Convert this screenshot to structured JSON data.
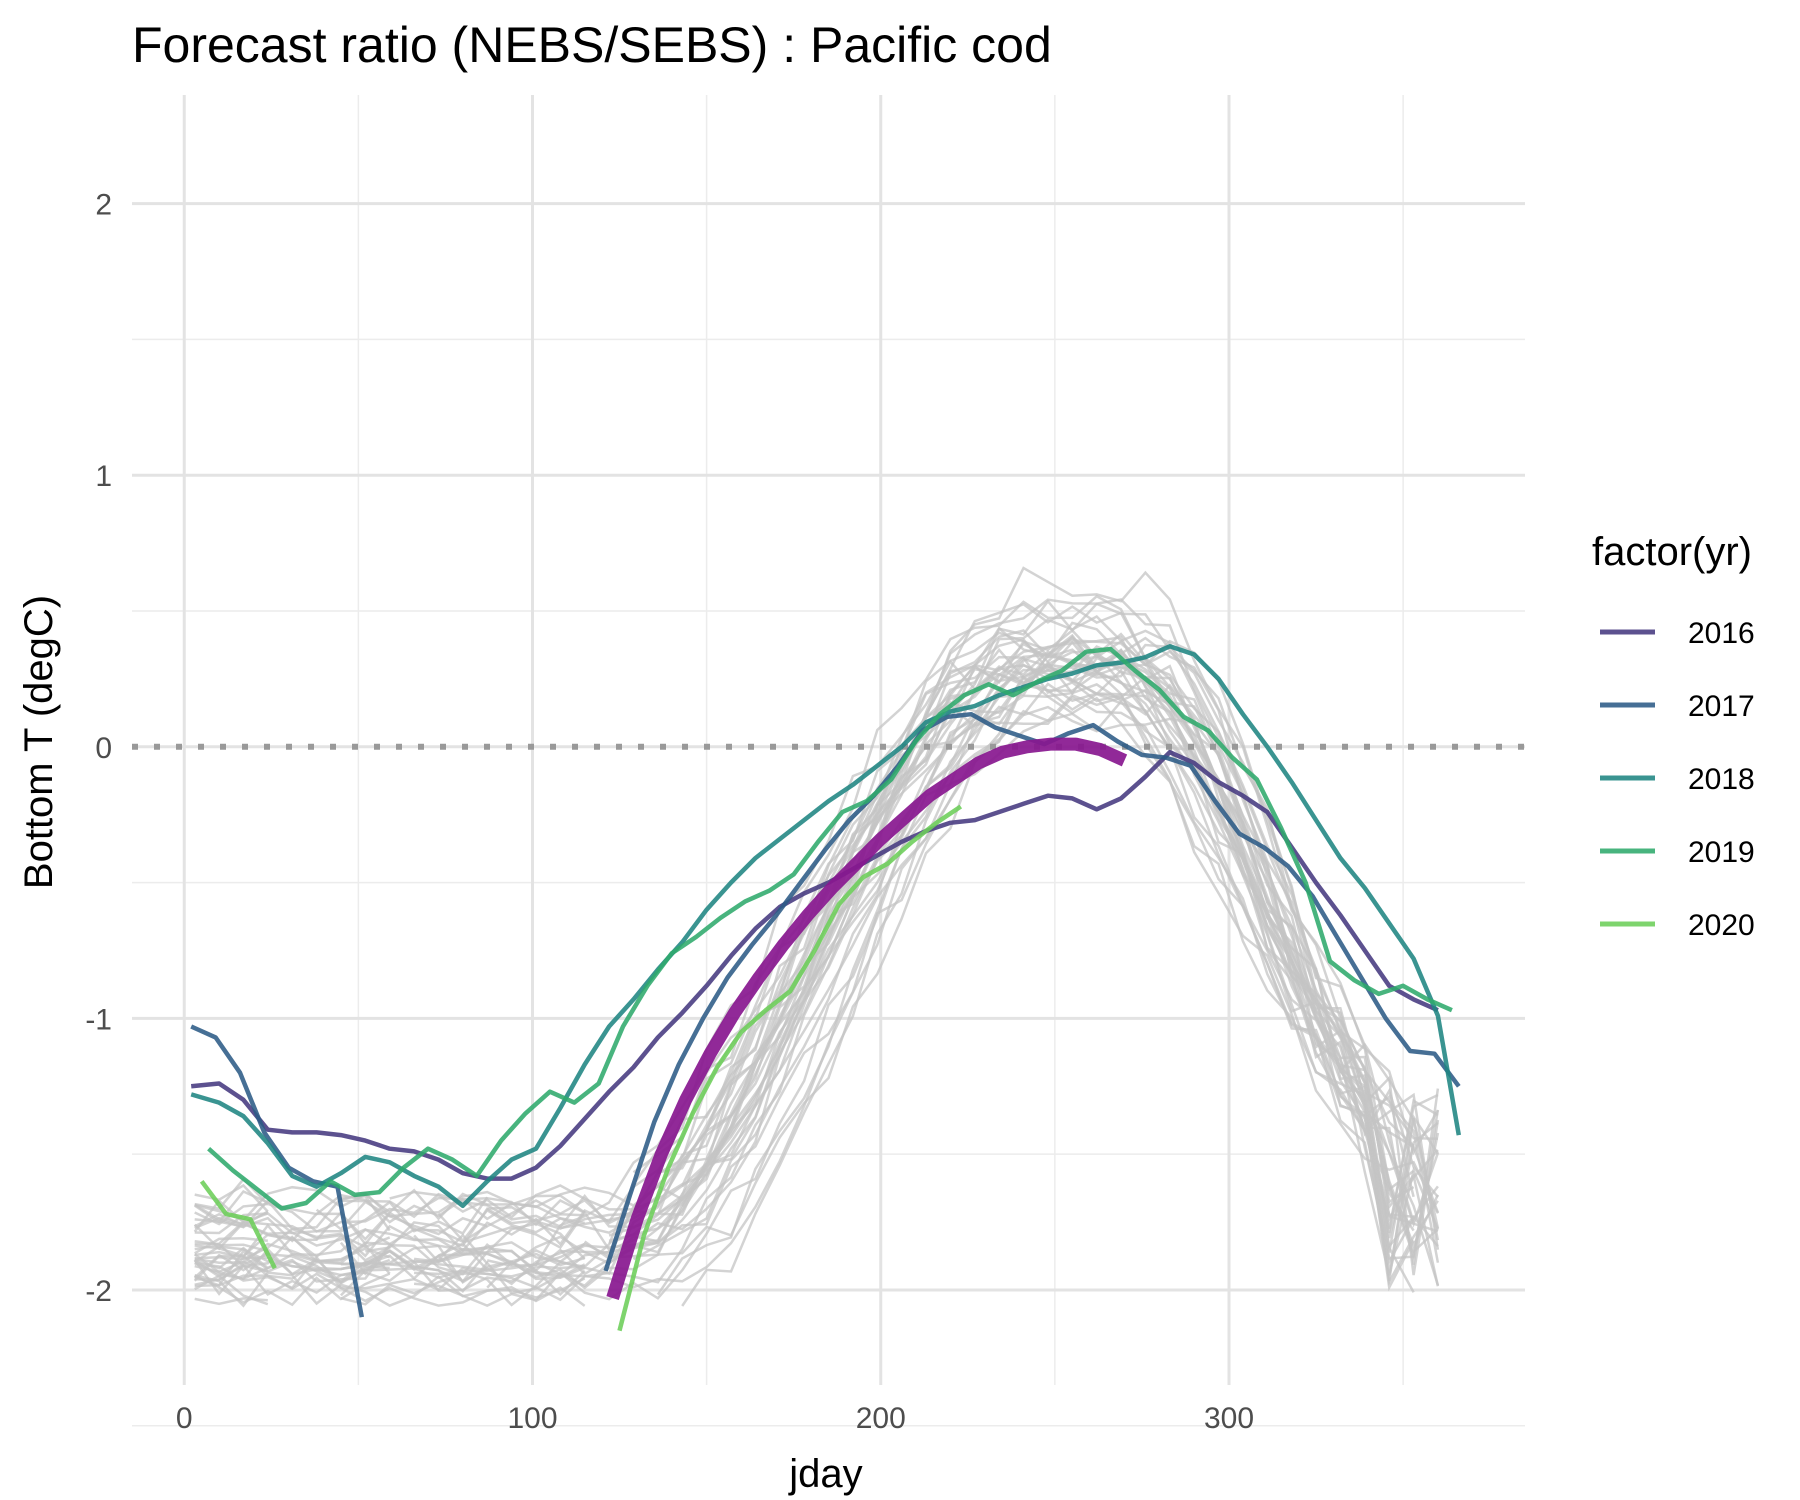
{
  "chart_data": {
    "type": "line",
    "title": "Forecast ratio (NEBS/SEBS) : Pacific cod",
    "xlabel": "jday",
    "ylabel": "Bottom T (degC)",
    "xlim": [
      -15,
      385
    ],
    "ylim": [
      -2.35,
      2.4
    ],
    "x_ticks": [
      0,
      100,
      200,
      300
    ],
    "x_tick_labels": [
      "0",
      "100",
      "200",
      "300"
    ],
    "y_ticks": [
      -2,
      -1,
      0,
      1,
      2
    ],
    "y_tick_labels": [
      "-2",
      "-1",
      "0",
      "1",
      "2"
    ],
    "grid": true,
    "reference_line": {
      "y": 0,
      "style": "dotted",
      "color": "#999999"
    },
    "legend": {
      "title": "factor(yr)",
      "position": "right",
      "entries": [
        {
          "label": "2016",
          "color": "#46397f"
        },
        {
          "label": "2017",
          "color": "#2c5b86"
        },
        {
          "label": "2018",
          "color": "#1f8582"
        },
        {
          "label": "2019",
          "color": "#2faa6c"
        },
        {
          "label": "2020",
          "color": "#6cce59"
        }
      ]
    },
    "colors": {
      "background_years": "#c4c4c4",
      "forecast": "#88178f"
    },
    "series": [
      {
        "name": "2016",
        "color": "#46397f",
        "x": [
          2,
          10,
          17,
          24,
          31,
          38,
          45,
          52,
          59,
          66,
          73,
          80,
          87,
          94,
          101,
          108,
          115,
          122,
          129,
          136,
          143,
          150,
          157,
          164,
          171,
          178,
          185,
          192,
          199,
          206,
          213,
          220,
          227,
          234,
          241,
          248,
          255,
          262,
          269,
          276,
          283,
          290,
          297,
          304,
          311,
          318,
          325,
          332,
          339,
          346,
          353,
          360
        ],
        "y": [
          -1.25,
          -1.24,
          -1.3,
          -1.41,
          -1.42,
          -1.42,
          -1.43,
          -1.45,
          -1.48,
          -1.49,
          -1.52,
          -1.57,
          -1.59,
          -1.59,
          -1.55,
          -1.47,
          -1.37,
          -1.27,
          -1.18,
          -1.07,
          -0.98,
          -0.88,
          -0.77,
          -0.67,
          -0.59,
          -0.54,
          -0.5,
          -0.45,
          -0.4,
          -0.35,
          -0.31,
          -0.28,
          -0.27,
          -0.24,
          -0.21,
          -0.18,
          -0.19,
          -0.23,
          -0.19,
          -0.11,
          -0.02,
          -0.06,
          -0.13,
          -0.18,
          -0.24,
          -0.37,
          -0.5,
          -0.62,
          -0.75,
          -0.88,
          -0.93,
          -0.97
        ]
      },
      {
        "name": "2017",
        "color": "#2c5b86",
        "x": [
          2,
          9,
          16,
          23,
          30,
          37,
          44,
          51,
          121,
          128,
          135,
          142,
          149,
          156,
          163,
          170,
          177,
          184,
          191,
          198,
          205,
          212,
          219,
          226,
          233,
          240,
          247,
          254,
          261,
          268,
          275,
          282,
          289,
          296,
          303,
          310,
          317,
          324,
          331,
          338,
          345,
          352,
          359,
          366
        ],
        "y": [
          -1.03,
          -1.07,
          -1.2,
          -1.42,
          -1.55,
          -1.6,
          -1.62,
          -2.1,
          -1.93,
          -1.65,
          -1.38,
          -1.17,
          -1.0,
          -0.85,
          -0.73,
          -0.62,
          -0.5,
          -0.38,
          -0.27,
          -0.18,
          -0.07,
          0.06,
          0.11,
          0.12,
          0.07,
          0.04,
          0.01,
          0.05,
          0.08,
          0.02,
          -0.03,
          -0.04,
          -0.07,
          -0.2,
          -0.32,
          -0.37,
          -0.44,
          -0.55,
          -0.7,
          -0.85,
          -1.0,
          -1.12,
          -1.13,
          -1.25
        ]
      },
      {
        "name": "2018",
        "color": "#1f8582",
        "x": [
          2,
          10,
          17,
          24,
          31,
          38,
          45,
          52,
          59,
          66,
          73,
          80,
          87,
          94,
          101,
          108,
          115,
          122,
          129,
          136,
          143,
          150,
          157,
          164,
          171,
          178,
          185,
          192,
          199,
          206,
          213,
          220,
          227,
          234,
          241,
          248,
          255,
          262,
          269,
          276,
          283,
          290,
          297,
          304,
          311,
          318,
          325,
          332,
          339,
          346,
          353,
          360,
          366
        ],
        "y": [
          -1.28,
          -1.31,
          -1.36,
          -1.46,
          -1.58,
          -1.62,
          -1.57,
          -1.51,
          -1.53,
          -1.58,
          -1.62,
          -1.69,
          -1.6,
          -1.52,
          -1.48,
          -1.33,
          -1.17,
          -1.03,
          -0.93,
          -0.82,
          -0.72,
          -0.6,
          -0.5,
          -0.41,
          -0.34,
          -0.27,
          -0.2,
          -0.14,
          -0.07,
          0.0,
          0.09,
          0.13,
          0.15,
          0.19,
          0.22,
          0.25,
          0.27,
          0.3,
          0.31,
          0.33,
          0.37,
          0.34,
          0.25,
          0.12,
          0.0,
          -0.13,
          -0.27,
          -0.41,
          -0.52,
          -0.65,
          -0.78,
          -0.99,
          -1.43
        ]
      },
      {
        "name": "2019",
        "color": "#2faa6c",
        "x": [
          7,
          14,
          21,
          28,
          35,
          42,
          49,
          56,
          63,
          70,
          77,
          84,
          91,
          98,
          105,
          112,
          119,
          126,
          133,
          140,
          147,
          154,
          161,
          168,
          175,
          182,
          189,
          196,
          203,
          210,
          217,
          224,
          231,
          238,
          245,
          252,
          259,
          266,
          273,
          280,
          287,
          294,
          301,
          308,
          315,
          322,
          329,
          336,
          343,
          350,
          357,
          364
        ],
        "y": [
          -1.48,
          -1.56,
          -1.63,
          -1.7,
          -1.68,
          -1.6,
          -1.65,
          -1.64,
          -1.55,
          -1.48,
          -1.52,
          -1.58,
          -1.45,
          -1.35,
          -1.27,
          -1.31,
          -1.24,
          -1.03,
          -0.88,
          -0.76,
          -0.7,
          -0.63,
          -0.57,
          -0.53,
          -0.47,
          -0.35,
          -0.24,
          -0.2,
          -0.12,
          0.02,
          0.12,
          0.19,
          0.23,
          0.19,
          0.24,
          0.28,
          0.35,
          0.36,
          0.28,
          0.21,
          0.11,
          0.06,
          -0.04,
          -0.12,
          -0.3,
          -0.5,
          -0.79,
          -0.86,
          -0.91,
          -0.88,
          -0.93,
          -0.97
        ]
      },
      {
        "name": "2020",
        "color": "#6cce59",
        "x": [
          5,
          12,
          19,
          26,
          125,
          132,
          139,
          146,
          153,
          160,
          167,
          174,
          181,
          188,
          195,
          202,
          209,
          216,
          223
        ],
        "y": [
          -1.6,
          -1.72,
          -1.74,
          -1.92,
          -2.15,
          -1.8,
          -1.55,
          -1.35,
          -1.18,
          -1.05,
          -0.97,
          -0.9,
          -0.75,
          -0.58,
          -0.48,
          -0.43,
          -0.35,
          -0.28,
          -0.22
        ]
      },
      {
        "name": "forecast",
        "color": "#88178f",
        "x": [
          123,
          130,
          137,
          144,
          151,
          158,
          165,
          172,
          179,
          186,
          193,
          200,
          207,
          214,
          221,
          228,
          235,
          242,
          249,
          256,
          263,
          270
        ],
        "y": [
          -2.03,
          -1.74,
          -1.5,
          -1.3,
          -1.13,
          -0.98,
          -0.85,
          -0.73,
          -0.62,
          -0.52,
          -0.43,
          -0.34,
          -0.26,
          -0.18,
          -0.12,
          -0.06,
          -0.02,
          0.0,
          0.01,
          0.01,
          -0.01,
          -0.05
        ]
      }
    ]
  }
}
